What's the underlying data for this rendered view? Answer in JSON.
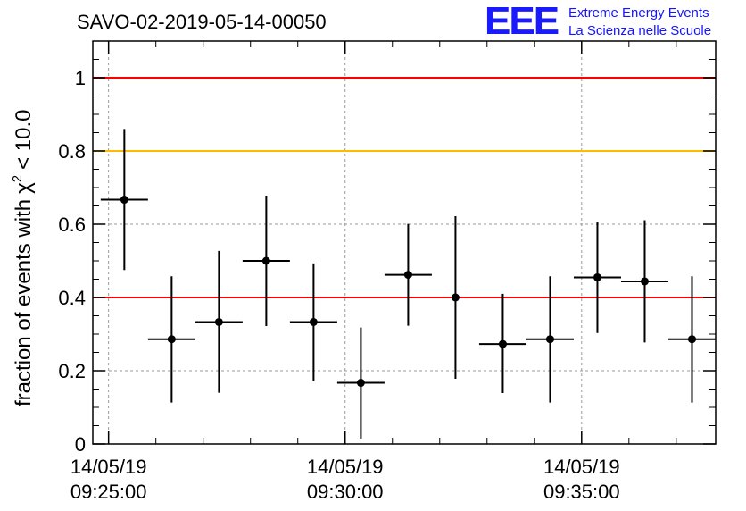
{
  "chart_data": {
    "type": "scatter",
    "title": "SAVO-02-2019-05-14-00050",
    "ylabel": "fraction of events with",
    "ylabel_symbol": "χ",
    "ylabel_sup": "2",
    "ylabel_tail": "< 10.0",
    "ylim": [
      0,
      1.1
    ],
    "xlim": [
      "09:24:40",
      "09:37:50"
    ],
    "yticks": [
      0,
      0.2,
      0.4,
      0.6,
      0.8,
      1
    ],
    "ytick_labels": [
      "0",
      "0.2",
      "0.4",
      "0.6",
      "0.8",
      "1"
    ],
    "xticks": [
      {
        "time": "09:25:00",
        "date": "14/05/19"
      },
      {
        "time": "09:30:00",
        "date": "14/05/19"
      },
      {
        "time": "09:35:00",
        "date": "14/05/19"
      }
    ],
    "grid": true,
    "reference_lines": [
      {
        "y": 1.0,
        "color": "#ff0000"
      },
      {
        "y": 0.8,
        "color": "#ffbb00"
      },
      {
        "y": 0.4,
        "color": "#ff0000"
      }
    ],
    "points": [
      {
        "x": "09:25:20",
        "xerr_s": 30,
        "y": 0.667,
        "ylo": 0.475,
        "yhi": 0.86
      },
      {
        "x": "09:26:20",
        "xerr_s": 30,
        "y": 0.286,
        "ylo": 0.113,
        "yhi": 0.458
      },
      {
        "x": "09:27:20",
        "xerr_s": 30,
        "y": 0.333,
        "ylo": 0.14,
        "yhi": 0.527
      },
      {
        "x": "09:28:20",
        "xerr_s": 30,
        "y": 0.5,
        "ylo": 0.322,
        "yhi": 0.678
      },
      {
        "x": "09:29:20",
        "xerr_s": 30,
        "y": 0.333,
        "ylo": 0.172,
        "yhi": 0.493
      },
      {
        "x": "09:30:20",
        "xerr_s": 30,
        "y": 0.167,
        "ylo": 0.015,
        "yhi": 0.318
      },
      {
        "x": "09:31:20",
        "xerr_s": 30,
        "y": 0.462,
        "ylo": 0.323,
        "yhi": 0.601
      },
      {
        "x": "09:32:20",
        "xerr_s": 0,
        "y": 0.4,
        "ylo": 0.178,
        "yhi": 0.622
      },
      {
        "x": "09:33:20",
        "xerr_s": 30,
        "y": 0.273,
        "ylo": 0.139,
        "yhi": 0.41
      },
      {
        "x": "09:34:20",
        "xerr_s": 30,
        "y": 0.286,
        "ylo": 0.113,
        "yhi": 0.458
      },
      {
        "x": "09:35:20",
        "xerr_s": 30,
        "y": 0.455,
        "ylo": 0.303,
        "yhi": 0.606
      },
      {
        "x": "09:36:20",
        "xerr_s": 30,
        "y": 0.444,
        "ylo": 0.277,
        "yhi": 0.611
      },
      {
        "x": "09:37:20",
        "xerr_s": 30,
        "y": 0.286,
        "ylo": 0.113,
        "yhi": 0.458
      }
    ]
  },
  "logo": {
    "mark": "EEE",
    "line1": "Extreme Energy Events",
    "line2": "La Scienza nelle Scuole",
    "color": "#1a1aff"
  }
}
